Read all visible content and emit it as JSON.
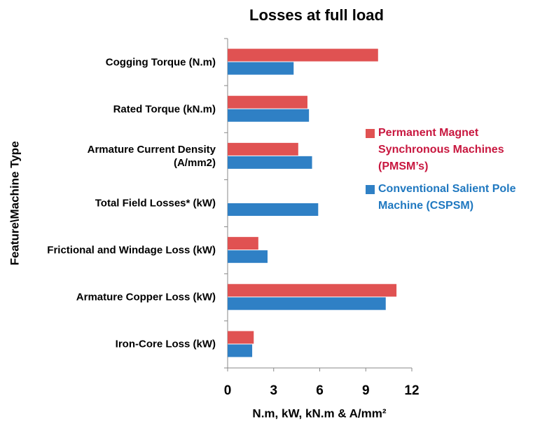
{
  "chart_data": {
    "type": "hbar",
    "title": "Losses at full load",
    "x_label": "N.m, kW, kN.m & A/mm²",
    "y_label": "Feature\\Machine Type",
    "categories": [
      "Cogging Torque (N.m)",
      "Rated Torque (kN.m)",
      "Armature Current Density (A/mm2)",
      "Total Field Losses* (kW)",
      "Frictional and Windage Loss (kW)",
      "Armature Copper Loss (kW)",
      "Iron-Core Loss (kW)"
    ],
    "series": [
      {
        "name": "Permanent Magnet Synchronous Machines (PMSM’s)",
        "color": "#e05252",
        "text_color": "#c8173f",
        "values": [
          9.8,
          5.2,
          4.6,
          null,
          2.0,
          11.0,
          1.7
        ]
      },
      {
        "name": "Conventional Salient Pole Machine (CSPSM)",
        "color": "#2f80c5",
        "text_color": "#1f78c0",
        "values": [
          4.3,
          5.3,
          5.5,
          5.9,
          2.6,
          10.3,
          1.6
        ]
      }
    ],
    "xlim": [
      0,
      12
    ],
    "xticks": [
      0,
      3,
      6,
      9,
      12
    ],
    "grid": false,
    "legend": "right"
  }
}
